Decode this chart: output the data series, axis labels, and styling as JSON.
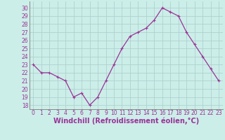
{
  "x": [
    0,
    1,
    2,
    3,
    4,
    5,
    6,
    7,
    8,
    9,
    10,
    11,
    12,
    13,
    14,
    15,
    16,
    17,
    18,
    19,
    20,
    21,
    22,
    23
  ],
  "y": [
    23,
    22,
    22,
    21.5,
    21,
    19,
    19.5,
    18,
    19,
    21,
    23,
    25,
    26.5,
    27,
    27.5,
    28.5,
    30,
    29.5,
    29,
    27,
    25.5,
    24,
    22.5,
    21
  ],
  "line_color": "#993399",
  "marker": "+",
  "bg_color": "#cceee8",
  "grid_color": "#aacccc",
  "xlabel": "Windchill (Refroidissement éolien,°C)",
  "xlabel_color": "#993399",
  "ylim": [
    17.5,
    30.8
  ],
  "yticks": [
    18,
    19,
    20,
    21,
    22,
    23,
    24,
    25,
    26,
    27,
    28,
    29,
    30
  ],
  "xticks": [
    0,
    1,
    2,
    3,
    4,
    5,
    6,
    7,
    8,
    9,
    10,
    11,
    12,
    13,
    14,
    15,
    16,
    17,
    18,
    19,
    20,
    21,
    22,
    23
  ],
  "tick_color": "#993399",
  "tick_fontsize": 5.5,
  "xlabel_fontsize": 7.0,
  "axis_color": "#888888"
}
